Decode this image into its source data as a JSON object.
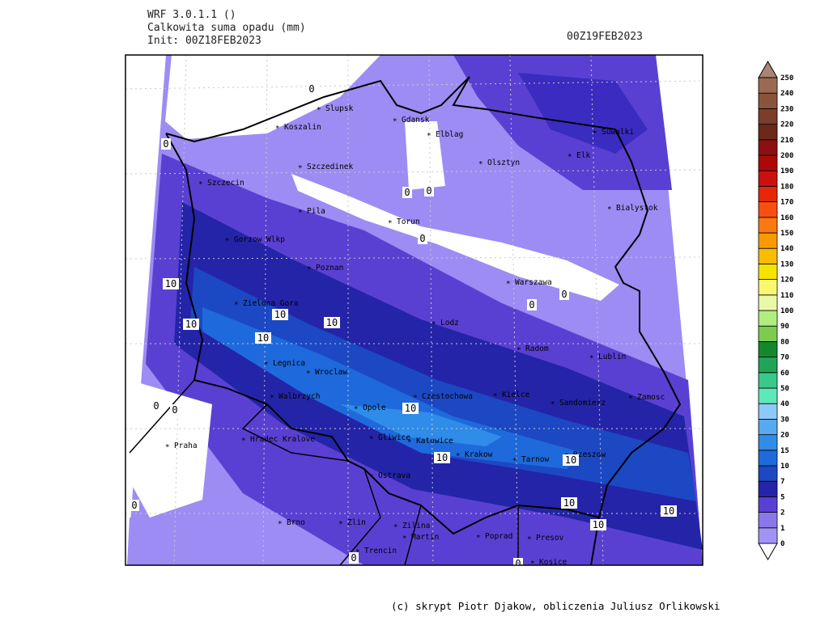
{
  "header": {
    "lines": [
      "WRF 3.0.1.1 ()",
      "Calkowita suma opadu (mm)",
      "Init: 00Z18FEB2023"
    ],
    "valid_time": "00Z19FEB2023"
  },
  "cities": [
    "Slupsk",
    "Koszalin",
    "Gdansk",
    "Elblag",
    "Suwalki",
    "Elk",
    "Olsztyn",
    "Szczedinek",
    "Szczecin",
    "Pila",
    "Torun",
    "Bialystok",
    "Gorzow Wlkp",
    "Poznan",
    "Warszawa",
    "Zielona Gora",
    "Lodz",
    "Radom",
    "Lublin",
    "Legnica",
    "Wroclaw",
    "Kielce",
    "Czestochowa",
    "Zamosc",
    "Walbrzych",
    "Sandomierz",
    "Opole",
    "Praha",
    "Hradec Kralove",
    "Gliwice",
    "Katowice",
    "Krakow",
    "Tarnow",
    "Rzeszow",
    "Ostrava",
    "Brno",
    "Zlin",
    "Zilina",
    "Presov",
    "Poprad",
    "Martin",
    "Trencin",
    "Kosice"
  ],
  "contour_labels": [
    0,
    0,
    0,
    0,
    0,
    0,
    0,
    0,
    0,
    0,
    0,
    0,
    10,
    10,
    10,
    10,
    10,
    10,
    10,
    10,
    10,
    10,
    10
  ],
  "legend": {
    "levels": [
      {
        "value": 0,
        "color": "#a193f6"
      },
      {
        "value": 1,
        "color": "#8a77ea"
      },
      {
        "value": 2,
        "color": "#5a40d2"
      },
      {
        "value": 5,
        "color": "#2424a8"
      },
      {
        "value": 7,
        "color": "#1c48c4"
      },
      {
        "value": 10,
        "color": "#1e6adc"
      },
      {
        "value": 15,
        "color": "#2f8ce8"
      },
      {
        "value": 20,
        "color": "#58aaf0"
      },
      {
        "value": 30,
        "color": "#8ccaf8"
      },
      {
        "value": 40,
        "color": "#5ee8b8"
      },
      {
        "value": 50,
        "color": "#38c88a"
      },
      {
        "value": 60,
        "color": "#20a458"
      },
      {
        "value": 70,
        "color": "#14882c"
      },
      {
        "value": 80,
        "color": "#7ccc50"
      },
      {
        "value": 90,
        "color": "#b0ee80"
      },
      {
        "value": 100,
        "color": "#eaf8a8"
      },
      {
        "value": 110,
        "color": "#f8f870"
      },
      {
        "value": 120,
        "color": "#f6e400"
      },
      {
        "value": 130,
        "color": "#f8bc00"
      },
      {
        "value": 140,
        "color": "#f89a00"
      },
      {
        "value": 150,
        "color": "#f87a10"
      },
      {
        "value": 160,
        "color": "#f84e10"
      },
      {
        "value": 170,
        "color": "#e42808"
      },
      {
        "value": 180,
        "color": "#cc1010"
      },
      {
        "value": 190,
        "color": "#ac0808"
      },
      {
        "value": 200,
        "color": "#8c1010"
      },
      {
        "value": 210,
        "color": "#6c2818"
      },
      {
        "value": 220,
        "color": "#7a3e2a"
      },
      {
        "value": 230,
        "color": "#8a543c"
      },
      {
        "value": 240,
        "color": "#9a6a54"
      },
      {
        "value": 250,
        "color": "#aa8474"
      }
    ]
  },
  "credit": "(c) skrypt Piotr Djakow, obliczenia Juliusz Orlikowski"
}
